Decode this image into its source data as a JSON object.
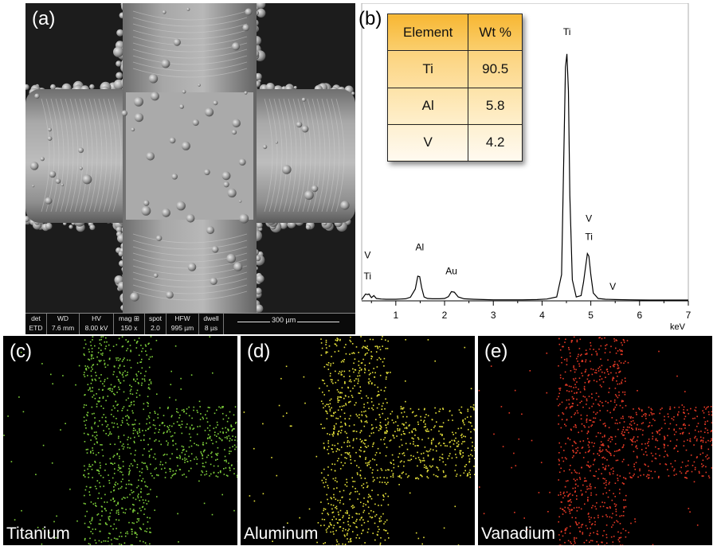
{
  "panels": {
    "a": {
      "label": "(a)"
    },
    "b": {
      "label": "(b)"
    },
    "c": {
      "label": "(c)",
      "name": "Titanium",
      "color": "#7fd13b"
    },
    "d": {
      "label": "(d)",
      "name": "Aluminum",
      "color": "#e6e23a"
    },
    "e": {
      "label": "(e)",
      "name": "Vanadium",
      "color": "#e83a26"
    }
  },
  "sem_info": {
    "columns": [
      {
        "head": "det",
        "value": "ETD"
      },
      {
        "head": "WD",
        "value": "7.6 mm"
      },
      {
        "head": "HV",
        "value": "8.00 kV"
      },
      {
        "head": "mag ⊞",
        "value": "150 x"
      },
      {
        "head": "spot",
        "value": "2.0"
      },
      {
        "head": "HFW",
        "value": "995 µm"
      },
      {
        "head": "dwell",
        "value": "8 µs"
      }
    ],
    "scale_bar": "300 µm"
  },
  "composition_table": {
    "headers": [
      "Element",
      "Wt %"
    ],
    "rows": [
      [
        "Ti",
        "90.5"
      ],
      [
        "Al",
        "5.8"
      ],
      [
        "V",
        "4.2"
      ]
    ]
  },
  "chart_data": {
    "type": "line",
    "title": "",
    "xlabel": "keV",
    "ylabel": "",
    "xlim": [
      0.3,
      7
    ],
    "ylim": [
      0,
      100
    ],
    "x_ticks": [
      1,
      2,
      3,
      4,
      5,
      6,
      7
    ],
    "grid": false,
    "series": [
      {
        "x": [
          0.3,
          0.38,
          0.42,
          0.45,
          0.5,
          0.55,
          0.6,
          0.7,
          0.8,
          0.9,
          1.0,
          1.1,
          1.2,
          1.3,
          1.4,
          1.45,
          1.49,
          1.53,
          1.58,
          1.65,
          1.75,
          1.9,
          2.0,
          2.08,
          2.14,
          2.2,
          2.28,
          2.4,
          2.6,
          2.8,
          3.0,
          3.3,
          3.6,
          3.9,
          4.1,
          4.3,
          4.4,
          4.45,
          4.48,
          4.51,
          4.54,
          4.57,
          4.62,
          4.7,
          4.8,
          4.85,
          4.9,
          4.93,
          4.96,
          5.0,
          5.05,
          5.15,
          5.3,
          5.5,
          5.8,
          6.2,
          6.6,
          7.0
        ],
        "y": [
          0.5,
          2.6,
          2.4,
          2.6,
          1.2,
          2.0,
          0.9,
          0.7,
          0.6,
          0.6,
          0.6,
          0.7,
          0.8,
          1.4,
          4.5,
          9.4,
          9.2,
          5.0,
          1.5,
          0.9,
          0.8,
          0.8,
          0.9,
          1.6,
          3.5,
          3.3,
          1.5,
          0.8,
          0.6,
          0.5,
          0.4,
          0.4,
          0.4,
          0.5,
          0.7,
          1.5,
          10,
          60,
          89,
          94,
          80,
          40,
          8,
          1.5,
          2.0,
          7.0,
          14,
          18,
          17,
          10,
          3.0,
          0.9,
          0.6,
          0.5,
          0.4,
          0.3,
          0.3,
          0.3
        ]
      }
    ],
    "peak_labels": [
      {
        "text": "Ti",
        "x": 0.42,
        "y": 7
      },
      {
        "text": "V",
        "x": 0.42,
        "y": 15
      },
      {
        "text": "Al",
        "x": 1.49,
        "y": 18
      },
      {
        "text": "Au",
        "x": 2.14,
        "y": 9
      },
      {
        "text": "Ti",
        "x": 4.51,
        "y": 100
      },
      {
        "text": "V",
        "x": 4.96,
        "y": 29
      },
      {
        "text": "Ti",
        "x": 4.96,
        "y": 22
      },
      {
        "text": "V",
        "x": 5.45,
        "y": 3
      }
    ]
  }
}
